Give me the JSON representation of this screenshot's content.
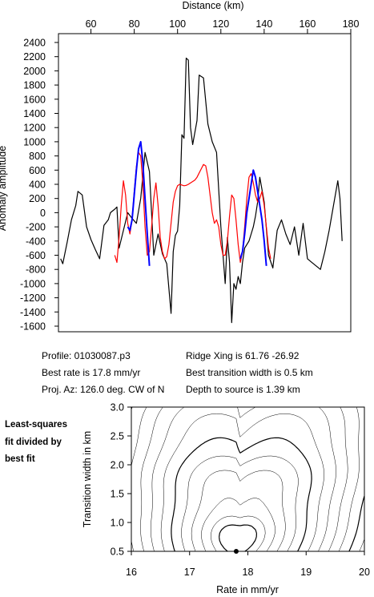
{
  "chart_data": [
    {
      "type": "line",
      "title": "",
      "xlabel": "Distance (km)",
      "ylabel": "Anomaly amplitude",
      "xlim": [
        45,
        180
      ],
      "ylim": [
        -1700,
        2400
      ],
      "x_ticks": [
        60,
        80,
        100,
        120,
        140,
        160,
        180
      ],
      "y_ticks": [
        -1600,
        -1400,
        -1200,
        -1000,
        -800,
        -600,
        -400,
        -200,
        0,
        200,
        400,
        600,
        800,
        1000,
        1200,
        1400,
        1600,
        1800,
        2000,
        2200,
        2400
      ],
      "grid": false,
      "series": [
        {
          "color": "#000000",
          "x": [
            46,
            47,
            49,
            51,
            53,
            54,
            56,
            58,
            60,
            62,
            64,
            66,
            68,
            69,
            71,
            72,
            73,
            75,
            77,
            79,
            81,
            83,
            85,
            87,
            89,
            91,
            93,
            95,
            97,
            98,
            99,
            100,
            101,
            102,
            103,
            104,
            105,
            106,
            107,
            109,
            110,
            112,
            114,
            116,
            118,
            120,
            122,
            123,
            124,
            125,
            126,
            127,
            128,
            129,
            130,
            131,
            132,
            133,
            134,
            135,
            136,
            137,
            138,
            140,
            142,
            144,
            146,
            148,
            150,
            152,
            154,
            156,
            158,
            160,
            162,
            164,
            166,
            168,
            170,
            172,
            174,
            175,
            176
          ],
          "y": [
            -650,
            -720,
            -420,
            -100,
            100,
            300,
            250,
            -200,
            -380,
            -520,
            -650,
            -180,
            -100,
            0,
            50,
            80,
            -500,
            -250,
            0,
            -80,
            -150,
            200,
            850,
            580,
            -600,
            -300,
            -580,
            -720,
            -1420,
            -550,
            -320,
            -260,
            100,
            1100,
            1050,
            2180,
            2150,
            1200,
            960,
            1300,
            1940,
            1900,
            1250,
            1000,
            850,
            -200,
            -1000,
            -350,
            -700,
            -1550,
            -1000,
            -1080,
            -900,
            -1000,
            -700,
            -500,
            -450,
            -400,
            -300,
            -200,
            -50,
            150,
            500,
            150,
            -600,
            -780,
            -250,
            -100,
            -300,
            -450,
            -200,
            -600,
            -150,
            -650,
            -700,
            -750,
            -800,
            -550,
            -250,
            100,
            450,
            200,
            -400
          ]
        },
        {
          "color": "#ff0000",
          "x": [
            71,
            72,
            73,
            74,
            75,
            76,
            77,
            78,
            79,
            80,
            81,
            82,
            83,
            84,
            85,
            86,
            87,
            88,
            89,
            90,
            91,
            92,
            93,
            94,
            95,
            96,
            97,
            98,
            99,
            100,
            101,
            102,
            103,
            104,
            105,
            106,
            107,
            108,
            109,
            110,
            111,
            112,
            113,
            114,
            115,
            116,
            117,
            118,
            119,
            120,
            121,
            122,
            123,
            124,
            125,
            126,
            127,
            128,
            129,
            130,
            131,
            132,
            133,
            134,
            135,
            136,
            137,
            138,
            139,
            140,
            141,
            142,
            143
          ],
          "y": [
            -600,
            -700,
            -350,
            100,
            450,
            250,
            -150,
            -300,
            -100,
            300,
            650,
            850,
            800,
            400,
            -200,
            -600,
            -550,
            -200,
            200,
            420,
            100,
            -350,
            -550,
            -650,
            -620,
            -450,
            -150,
            150,
            300,
            380,
            400,
            390,
            380,
            385,
            400,
            420,
            440,
            460,
            500,
            560,
            620,
            680,
            660,
            500,
            250,
            0,
            -150,
            -100,
            -200,
            -450,
            -600,
            -600,
            -400,
            -50,
            250,
            200,
            -100,
            -450,
            -700,
            -550,
            -200,
            200,
            500,
            550,
            420,
            250,
            150,
            200,
            300,
            100,
            -200,
            -500,
            -650
          ]
        },
        {
          "color": "#0000ff",
          "x": [
            77,
            78,
            79,
            80,
            81,
            82,
            83,
            84,
            85,
            86,
            87,
            129,
            130,
            131,
            132,
            133,
            134,
            135,
            136,
            137,
            138,
            139,
            140,
            141
          ],
          "y": [
            -200,
            -250,
            -100,
            250,
            600,
            900,
            1000,
            700,
            200,
            -300,
            -750,
            -650,
            -550,
            -300,
            0,
            200,
            400,
            600,
            500,
            300,
            100,
            -100,
            -400,
            -750
          ]
        }
      ]
    },
    {
      "type": "contour",
      "title": "",
      "xlabel": "Rate in mm/yr",
      "ylabel": "Transition width in km",
      "xlim": [
        16,
        20
      ],
      "ylim": [
        0.5,
        3.0
      ],
      "x_ticks": [
        "16",
        "17",
        "18",
        "19",
        "20"
      ],
      "y_ticks": [
        "0.5",
        "1.0",
        "1.5",
        "2.0",
        "2.5",
        "3.0"
      ],
      "best_fit": {
        "rate": 17.8,
        "width": 0.5
      },
      "grid": false
    }
  ],
  "info": {
    "profile": "Profile: 01030087.p3",
    "best_rate": "Best rate is 17.8 mm/yr",
    "proj_az": "Proj. Az: 126.0 deg. CW of N",
    "ridge_xing": "Ridge Xing is 61.76 -26.92",
    "transition": "Best transition width is 0.5 km",
    "depth": "Depth to source is    1.39 km"
  },
  "note": [
    "Least-squares",
    "fit divided by",
    "best fit"
  ]
}
